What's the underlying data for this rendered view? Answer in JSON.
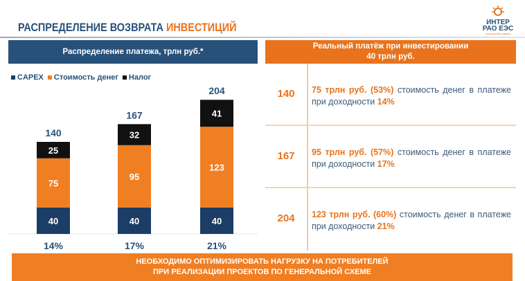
{
  "header": {
    "title_part1": "РАСПРЕДЕЛЕНИЕ ВОЗВРАТА",
    "title_part2": "ИНВЕСТИЦИЙ",
    "logo_line1": "ИНТЕР",
    "logo_line2": "РАО ЕЭС",
    "logo_tagline": "энергия без границ"
  },
  "left_panel": {
    "title": "Распределение платежа, трлн руб.*"
  },
  "right_panel": {
    "title_line1": "Реальный платёж при инвестировании",
    "title_line2": "40 трлн руб.",
    "rows": [
      {
        "total": "140",
        "highlight": "75 трлн руб. (53%)",
        "text": " стоимость денег в платеже при доходности ",
        "rate": "14%"
      },
      {
        "total": "167",
        "highlight": "95 трлн руб. (57%)",
        "text": " стоимость денег в платеже при доходности ",
        "rate": "17%"
      },
      {
        "total": "204",
        "highlight": "123 трлн руб. (60%)",
        "text": " стоимость денег в платеже при доходности ",
        "rate": "21%"
      }
    ]
  },
  "colors": {
    "capex": "#1c3d66",
    "money": "#f07f24",
    "tax": "#111111",
    "brand_blue": "#28517a",
    "brand_orange": "#e8731c"
  },
  "chart_data": {
    "type": "bar",
    "stacked": true,
    "categories": [
      "14%",
      "17%",
      "21%"
    ],
    "series": [
      {
        "name": "CAPEX",
        "values": [
          40,
          40,
          40
        ]
      },
      {
        "name": "Стоимость денег",
        "values": [
          75,
          95,
          123
        ]
      },
      {
        "name": "Налог",
        "values": [
          25,
          32,
          41
        ]
      }
    ],
    "totals": [
      140,
      167,
      204
    ],
    "legend": "top-left",
    "grid": false
  },
  "banner": {
    "line1": "НЕОБХОДИМО ОПТИМИЗИРОВАТЬ НАГРУЗКУ НА ПОТРЕБИТЕЛЕЙ",
    "line2": "ПРИ РЕАЛИЗАЦИИ ПРОЕКТОВ ПО ГЕНЕРАЛЬНОЙ СХЕМЕ"
  }
}
